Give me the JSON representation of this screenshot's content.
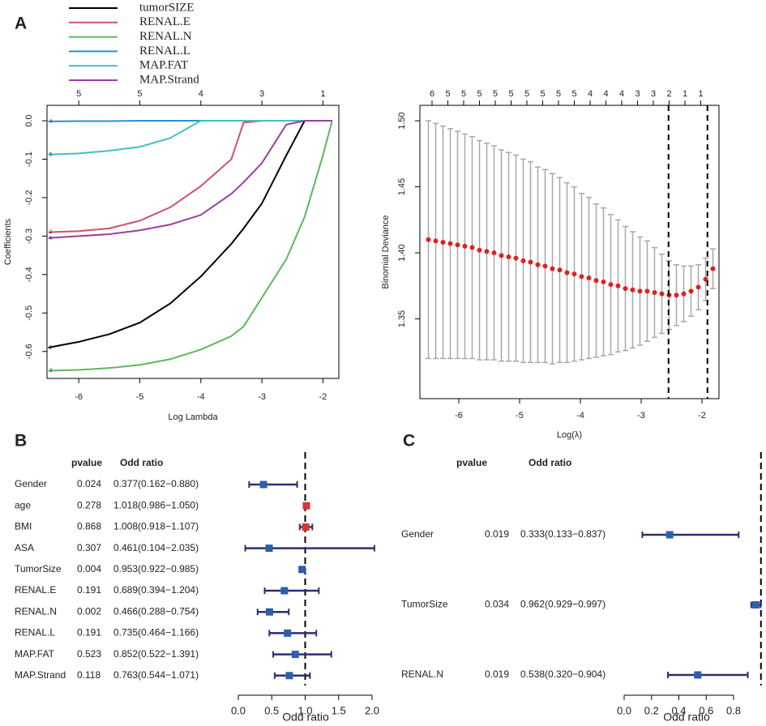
{
  "chart_data": [
    {
      "type": "line",
      "panel_label": "A",
      "x_label": "Log Lambda",
      "y_label": "Coefficients",
      "x": [
        -6.5,
        -6,
        -5.5,
        -5,
        -4.5,
        -4,
        -3.5,
        -3.3,
        -3,
        -2.6,
        -2.3,
        -2,
        -1.85
      ],
      "series": [
        {
          "name": "tumorSIZE",
          "label": "1",
          "color": "#000000",
          "values": [
            -0.59,
            -0.575,
            -0.555,
            -0.525,
            -0.475,
            -0.405,
            -0.32,
            -0.28,
            -0.215,
            -0.09,
            0,
            0,
            0
          ]
        },
        {
          "name": "RENAL.E",
          "label": "2",
          "color": "#d0506a",
          "values": [
            -0.29,
            -0.287,
            -0.28,
            -0.26,
            -0.225,
            -0.17,
            -0.1,
            -0.005,
            0,
            0,
            0,
            0,
            0
          ]
        },
        {
          "name": "RENAL.N",
          "label": "3",
          "color": "#5cb85c",
          "values": [
            -0.65,
            -0.648,
            -0.643,
            -0.635,
            -0.62,
            -0.595,
            -0.56,
            -0.535,
            -0.46,
            -0.36,
            -0.25,
            -0.09,
            0
          ]
        },
        {
          "name": "RENAL.L",
          "label": "4",
          "color": "#2a8fd0",
          "values": [
            -0.002,
            -0.001,
            -0.001,
            0,
            0,
            0,
            0,
            0,
            0,
            0,
            0,
            0,
            0
          ]
        },
        {
          "name": "MAP.FAT",
          "label": "5",
          "color": "#40c0c0",
          "values": [
            -0.088,
            -0.085,
            -0.078,
            -0.068,
            -0.045,
            0,
            0,
            0,
            0,
            0,
            0,
            0,
            0
          ]
        },
        {
          "name": "MAP.Strand",
          "label": "6",
          "color": "#9a40a0",
          "values": [
            -0.305,
            -0.3,
            -0.295,
            -0.285,
            -0.27,
            -0.245,
            -0.19,
            -0.16,
            -0.11,
            -0.01,
            0,
            0,
            0
          ]
        }
      ],
      "xlim": [
        -6.52,
        -1.74
      ],
      "xticks": [
        -6,
        -5,
        -4,
        -3,
        -2
      ],
      "ylim": [
        -0.67,
        0.04
      ],
      "yticks": [
        {
          "value": 0,
          "label": "0.0"
        },
        -0.1,
        -0.2,
        -0.3,
        -0.4,
        -0.5,
        -0.6
      ],
      "top_ticks": [
        -6,
        -5,
        -4,
        -3,
        -2
      ],
      "top_labels": [
        5,
        5,
        4,
        3,
        1
      ]
    },
    {
      "type": "errorbar",
      "x_label": "Log(λ)",
      "y_label": "Binomial Deviance",
      "color": "#e02020",
      "error_color": "#a8a8a8",
      "x": [
        -6.5,
        -6.38,
        -6.26,
        -6.14,
        -6.02,
        -5.9,
        -5.78,
        -5.66,
        -5.54,
        -5.42,
        -5.3,
        -5.18,
        -5.06,
        -4.94,
        -4.82,
        -4.7,
        -4.58,
        -4.46,
        -4.34,
        -4.22,
        -4.1,
        -3.98,
        -3.86,
        -3.74,
        -3.62,
        -3.5,
        -3.38,
        -3.26,
        -3.14,
        -3.02,
        -2.9,
        -2.78,
        -2.66,
        -2.54,
        -2.42,
        -2.3,
        -2.18,
        -2.06,
        -1.94,
        -1.82
      ],
      "values": [
        1.41,
        1.409,
        1.408,
        1.407,
        1.406,
        1.405,
        1.404,
        1.402,
        1.401,
        1.4,
        1.398,
        1.397,
        1.396,
        1.394,
        1.393,
        1.391,
        1.39,
        1.388,
        1.387,
        1.385,
        1.384,
        1.382,
        1.381,
        1.379,
        1.378,
        1.376,
        1.375,
        1.373,
        1.372,
        1.371,
        1.371,
        1.37,
        1.369,
        1.368,
        1.368,
        1.369,
        1.371,
        1.374,
        1.38,
        1.388
      ],
      "errors": [
        0.09,
        0.089,
        0.088,
        0.087,
        0.086,
        0.085,
        0.084,
        0.083,
        0.082,
        0.081,
        0.08,
        0.079,
        0.078,
        0.077,
        0.076,
        0.074,
        0.073,
        0.072,
        0.07,
        0.068,
        0.066,
        0.063,
        0.061,
        0.058,
        0.056,
        0.053,
        0.05,
        0.047,
        0.044,
        0.041,
        0.038,
        0.034,
        0.03,
        0.026,
        0.023,
        0.021,
        0.019,
        0.017,
        0.016,
        0.015
      ],
      "xlim": [
        -6.64,
        -1.72
      ],
      "xticks": [
        -6,
        -5,
        -4,
        -3,
        -2
      ],
      "ylim": [
        1.2896,
        1.5117
      ],
      "yticks": [
        1.35,
        {
          "value": 1.4,
          "label": "1.40"
        },
        1.45,
        {
          "value": 1.5,
          "label": "1.50"
        }
      ],
      "vlines": [
        -2.55,
        -1.91
      ],
      "top_ticks": [
        -6.44,
        -6.18,
        -5.92,
        -5.66,
        -5.4,
        -5.14,
        -4.88,
        -4.62,
        -4.36,
        -4.1,
        -3.84,
        -3.58,
        -3.32,
        -3.06,
        -2.8,
        -2.54,
        -2.28,
        -2.02
      ],
      "top_labels": [
        6,
        5,
        5,
        5,
        5,
        5,
        5,
        5,
        5,
        5,
        4,
        4,
        4,
        3,
        3,
        2,
        1,
        1
      ]
    },
    {
      "type": "forest",
      "panel_label": "B",
      "pvalue_header": "pvalue",
      "or_header": "Odd ratio",
      "x_label": "Odd ratio",
      "categories": [
        "Gender",
        "age",
        "BMI",
        "ASA",
        "TumorSize",
        "RENAL.E",
        "RENAL.N",
        "RENAL.L",
        "MAP.FAT",
        "MAP.Strand"
      ],
      "pvalues": [
        0.024,
        0.278,
        0.868,
        0.307,
        0.004,
        0.191,
        0.002,
        0.191,
        0.523,
        0.118
      ],
      "values": [
        0.377,
        1.018,
        1.008,
        0.461,
        0.953,
        0.689,
        0.466,
        0.735,
        0.852,
        0.763
      ],
      "lower": [
        0.162,
        0.986,
        0.918,
        0.104,
        0.922,
        0.394,
        0.288,
        0.464,
        0.522,
        0.544
      ],
      "upper": [
        0.88,
        1.05,
        1.107,
        2.035,
        0.985,
        1.204,
        0.754,
        1.166,
        1.391,
        1.071
      ],
      "value_labels": [
        "0.377(0.162−0.880)",
        "1.018(0.986−1.050)",
        "1.008(0.918−1.107)",
        "0.461(0.104−2.035)",
        "0.953(0.922−0.985)",
        "0.689(0.394−1.204)",
        "0.466(0.288−0.754)",
        "0.735(0.464−1.166)",
        "0.852(0.522−1.391)",
        "0.763(0.544−1.071)"
      ],
      "colors": [
        "#2b5fad",
        "#e03030",
        "#e03030",
        "#2b5fad",
        "#2b5fad",
        "#2b5fad",
        "#2b5fad",
        "#2b5fad",
        "#2b5fad",
        "#2b5fad"
      ],
      "ci_color": "#2a3070",
      "ref_line": 1,
      "xlim": [
        0,
        2
      ],
      "xticks": [
        {
          "value": 0,
          "label": "0.0"
        },
        0.5,
        {
          "value": 1,
          "label": "1.0"
        },
        1.5,
        {
          "value": 2,
          "label": "2.0"
        }
      ]
    },
    {
      "type": "forest",
      "panel_label": "C",
      "pvalue_header": "pvalue",
      "or_header": "Odd ratio",
      "x_label": "Odd ratio",
      "categories": [
        "Gender",
        "TumorSize",
        "RENAL.N"
      ],
      "pvalues": [
        0.019,
        0.034,
        0.019
      ],
      "values": [
        0.333,
        0.962,
        0.538
      ],
      "lower": [
        0.133,
        0.929,
        0.32
      ],
      "upper": [
        0.837,
        0.997,
        0.904
      ],
      "value_labels": [
        "0.333(0.133−0.837)",
        "0.962(0.929−0.997)",
        "0.538(0.320−0.904)"
      ],
      "colors": [
        "#2b5fad",
        "#2b5fad",
        "#2b5fad"
      ],
      "ci_color": "#2a3070",
      "ref_line": 1,
      "xlim": [
        0,
        1
      ],
      "xticks": [
        {
          "value": 0,
          "label": "0.0"
        },
        0.2,
        0.4,
        0.6,
        0.8
      ]
    }
  ]
}
